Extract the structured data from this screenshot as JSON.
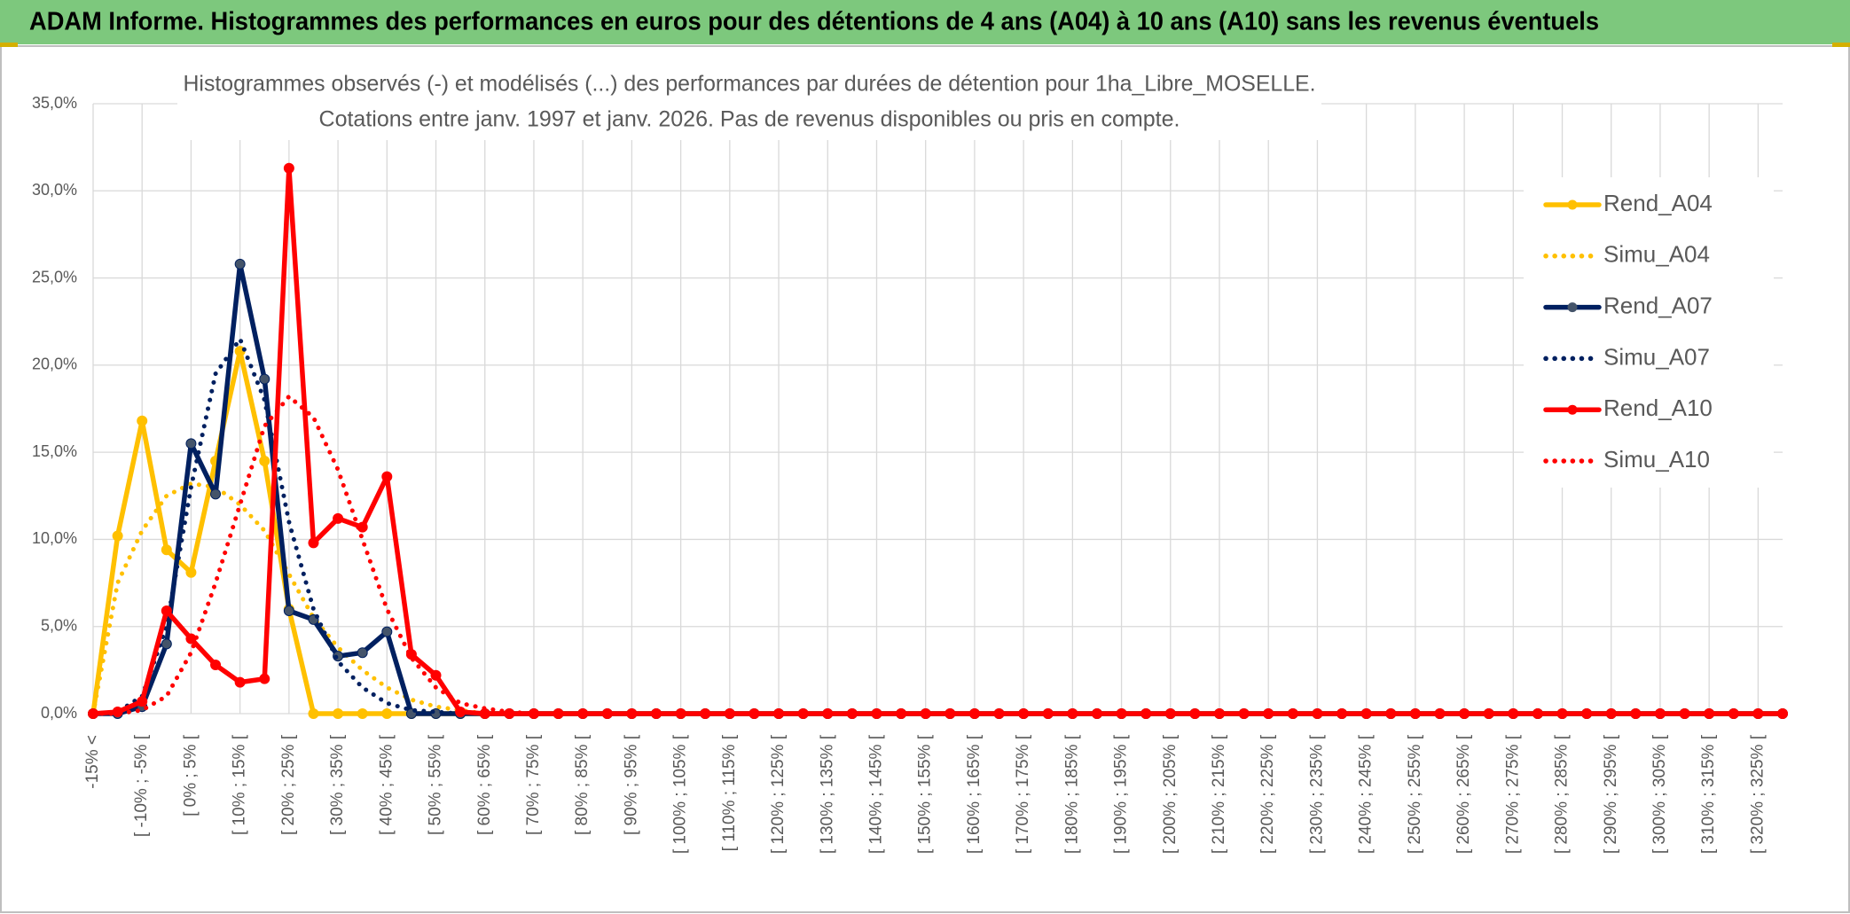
{
  "header": {
    "title": "ADAM Informe. Histogrammes des performances en euros pour des détentions de 4 ans (A04) à 10 ans (A10) sans les revenus éventuels"
  },
  "chart_data": {
    "type": "line",
    "title": "Histogrammes observés (-) et modélisés (...) des performances par durées de détention pour 1ha_Libre_MOSELLE.",
    "subtitle": "Cotations entre janv. 1997 et janv. 2026. Pas de revenus disponibles ou pris en compte.",
    "categories": [
      "-15% <",
      null,
      "[ -10% ; -5% [",
      null,
      "[ 0% ; 5% [",
      null,
      "[ 10% ; 15% [",
      null,
      "[ 20% ; 25% [",
      null,
      "[ 30% ; 35% [",
      null,
      "[ 40% ; 45% [",
      null,
      "[ 50% ; 55% [",
      null,
      "[ 60% ; 65% [",
      null,
      "[ 70% ; 75% [",
      null,
      "[ 80% ; 85% [",
      null,
      "[ 90% ; 95% [",
      null,
      "[ 100% ; 105% [",
      null,
      "[ 110% ; 115% [",
      null,
      "[ 120% ; 125% [",
      null,
      "[ 130% ; 135% [",
      null,
      "[ 140% ; 145% [",
      null,
      "[ 150% ; 155% [",
      null,
      "[ 160% ; 165% [",
      null,
      "[ 170% ; 175% [",
      null,
      "[ 180% ; 185% [",
      null,
      "[ 190% ; 195% [",
      null,
      "[ 200% ; 205% [",
      null,
      "[ 210% ; 215% [",
      null,
      "[ 220% ; 225% [",
      null,
      "[ 230% ; 235% [",
      null,
      "[ 240% ; 245% [",
      null,
      "[ 250% ; 255% [",
      null,
      "[ 260% ; 265% [",
      null,
      "[ 270% ; 275% [",
      null,
      "[ 280% ; 285% [",
      null,
      "[ 290% ; 295% [",
      null,
      "[ 300% ; 305% [",
      null,
      "[ 310% ; 315% [",
      null,
      "[ 320% ; 325% [",
      null
    ],
    "series": [
      {
        "name": "Rend_A04",
        "color": "#FFC000",
        "style": "solid",
        "markers": true,
        "values": [
          0,
          10.2,
          16.8,
          9.4,
          8.1,
          14.5,
          20.8,
          14.5,
          6.0,
          0,
          0,
          0,
          0,
          0,
          0,
          0,
          0,
          0,
          0,
          0,
          0,
          0,
          0,
          0,
          0,
          0,
          0,
          0,
          0,
          0,
          0,
          0,
          0,
          0,
          0,
          0,
          0,
          0,
          0,
          0,
          0,
          0,
          0,
          0,
          0,
          0,
          0,
          0,
          0,
          0,
          0,
          0,
          0,
          0,
          0,
          0,
          0,
          0,
          0,
          0,
          0,
          0,
          0,
          0,
          0,
          0,
          0,
          0,
          0,
          0
        ]
      },
      {
        "name": "Simu_A04",
        "color": "#FFC000",
        "style": "dotted",
        "markers": false,
        "values": [
          0,
          7.5,
          10.5,
          12.5,
          13.2,
          13,
          12,
          10.5,
          8,
          5.5,
          3.8,
          2.5,
          1.5,
          0.8,
          0.4,
          0.2,
          0,
          0,
          0,
          0,
          0,
          0,
          0,
          0,
          0,
          0,
          0,
          0,
          0,
          0,
          0,
          0,
          0,
          0,
          0,
          0,
          0,
          0,
          0,
          0,
          0,
          0,
          0,
          0,
          0,
          0,
          0,
          0,
          0,
          0,
          0,
          0,
          0,
          0,
          0,
          0,
          0,
          0,
          0,
          0,
          0,
          0,
          0,
          0,
          0,
          0,
          0,
          0,
          0,
          0
        ]
      },
      {
        "name": "Rend_A07",
        "color": "#002060",
        "style": "solid",
        "markers": true,
        "values": [
          0,
          0,
          0.4,
          4.0,
          15.5,
          12.6,
          25.8,
          19.2,
          5.9,
          5.4,
          3.3,
          3.5,
          4.7,
          0,
          0,
          0,
          0,
          0,
          0,
          0,
          0,
          0,
          0,
          0,
          0,
          0,
          0,
          0,
          0,
          0,
          0,
          0,
          0,
          0,
          0,
          0,
          0,
          0,
          0,
          0,
          0,
          0,
          0,
          0,
          0,
          0,
          0,
          0,
          0,
          0,
          0,
          0,
          0,
          0,
          0,
          0,
          0,
          0,
          0,
          0,
          0,
          0,
          0,
          0,
          0,
          0,
          0,
          0,
          0,
          0
        ]
      },
      {
        "name": "Simu_A07",
        "color": "#002060",
        "style": "dotted",
        "markers": false,
        "values": [
          0,
          0.1,
          1,
          5,
          13,
          19.5,
          21.5,
          18,
          11,
          6,
          3,
          1.5,
          0.6,
          0.2,
          0.1,
          0,
          0,
          0,
          0,
          0,
          0,
          0,
          0,
          0,
          0,
          0,
          0,
          0,
          0,
          0,
          0,
          0,
          0,
          0,
          0,
          0,
          0,
          0,
          0,
          0,
          0,
          0,
          0,
          0,
          0,
          0,
          0,
          0,
          0,
          0,
          0,
          0,
          0,
          0,
          0,
          0,
          0,
          0,
          0,
          0,
          0,
          0,
          0,
          0,
          0,
          0,
          0,
          0,
          0,
          0
        ]
      },
      {
        "name": "Rend_A10",
        "color": "#FF0000",
        "style": "solid",
        "markers": true,
        "values": [
          0,
          0.1,
          0.7,
          5.9,
          4.3,
          2.8,
          1.8,
          2.0,
          31.3,
          9.8,
          11.2,
          10.7,
          13.6,
          3.4,
          2.2,
          0.1,
          0,
          0,
          0,
          0,
          0,
          0,
          0,
          0,
          0,
          0,
          0,
          0,
          0,
          0,
          0,
          0,
          0,
          0,
          0,
          0,
          0,
          0,
          0,
          0,
          0,
          0,
          0,
          0,
          0,
          0,
          0,
          0,
          0,
          0,
          0,
          0,
          0,
          0,
          0,
          0,
          0,
          0,
          0,
          0,
          0,
          0,
          0,
          0,
          0,
          0,
          0,
          0,
          0,
          0
        ]
      },
      {
        "name": "Simu_A10",
        "color": "#FF0000",
        "style": "dotted",
        "markers": false,
        "values": [
          0,
          0,
          0.2,
          1,
          3.5,
          7.5,
          12,
          16.5,
          18.2,
          17,
          14,
          10,
          6,
          3.2,
          1.5,
          0.6,
          0.3,
          0.1,
          0,
          0,
          0,
          0,
          0,
          0,
          0,
          0,
          0,
          0,
          0,
          0,
          0,
          0,
          0,
          0,
          0,
          0,
          0,
          0,
          0,
          0,
          0,
          0,
          0,
          0,
          0,
          0,
          0,
          0,
          0,
          0,
          0,
          0,
          0,
          0,
          0,
          0,
          0,
          0,
          0,
          0,
          0,
          0,
          0,
          0,
          0,
          0,
          0,
          0,
          0,
          0
        ]
      }
    ],
    "ylim": [
      0,
      35
    ],
    "yticks": [
      {
        "value": 0,
        "label": "0,0%"
      },
      {
        "value": 5,
        "label": "5,0%"
      },
      {
        "value": 10,
        "label": "10,0%"
      },
      {
        "value": 15,
        "label": "15,0%"
      },
      {
        "value": 20,
        "label": "20,0%"
      },
      {
        "value": 25,
        "label": "25,0%"
      },
      {
        "value": 30,
        "label": "30,0%"
      },
      {
        "value": 35,
        "label": "35,0%"
      }
    ],
    "grid": true,
    "legend": "right"
  }
}
